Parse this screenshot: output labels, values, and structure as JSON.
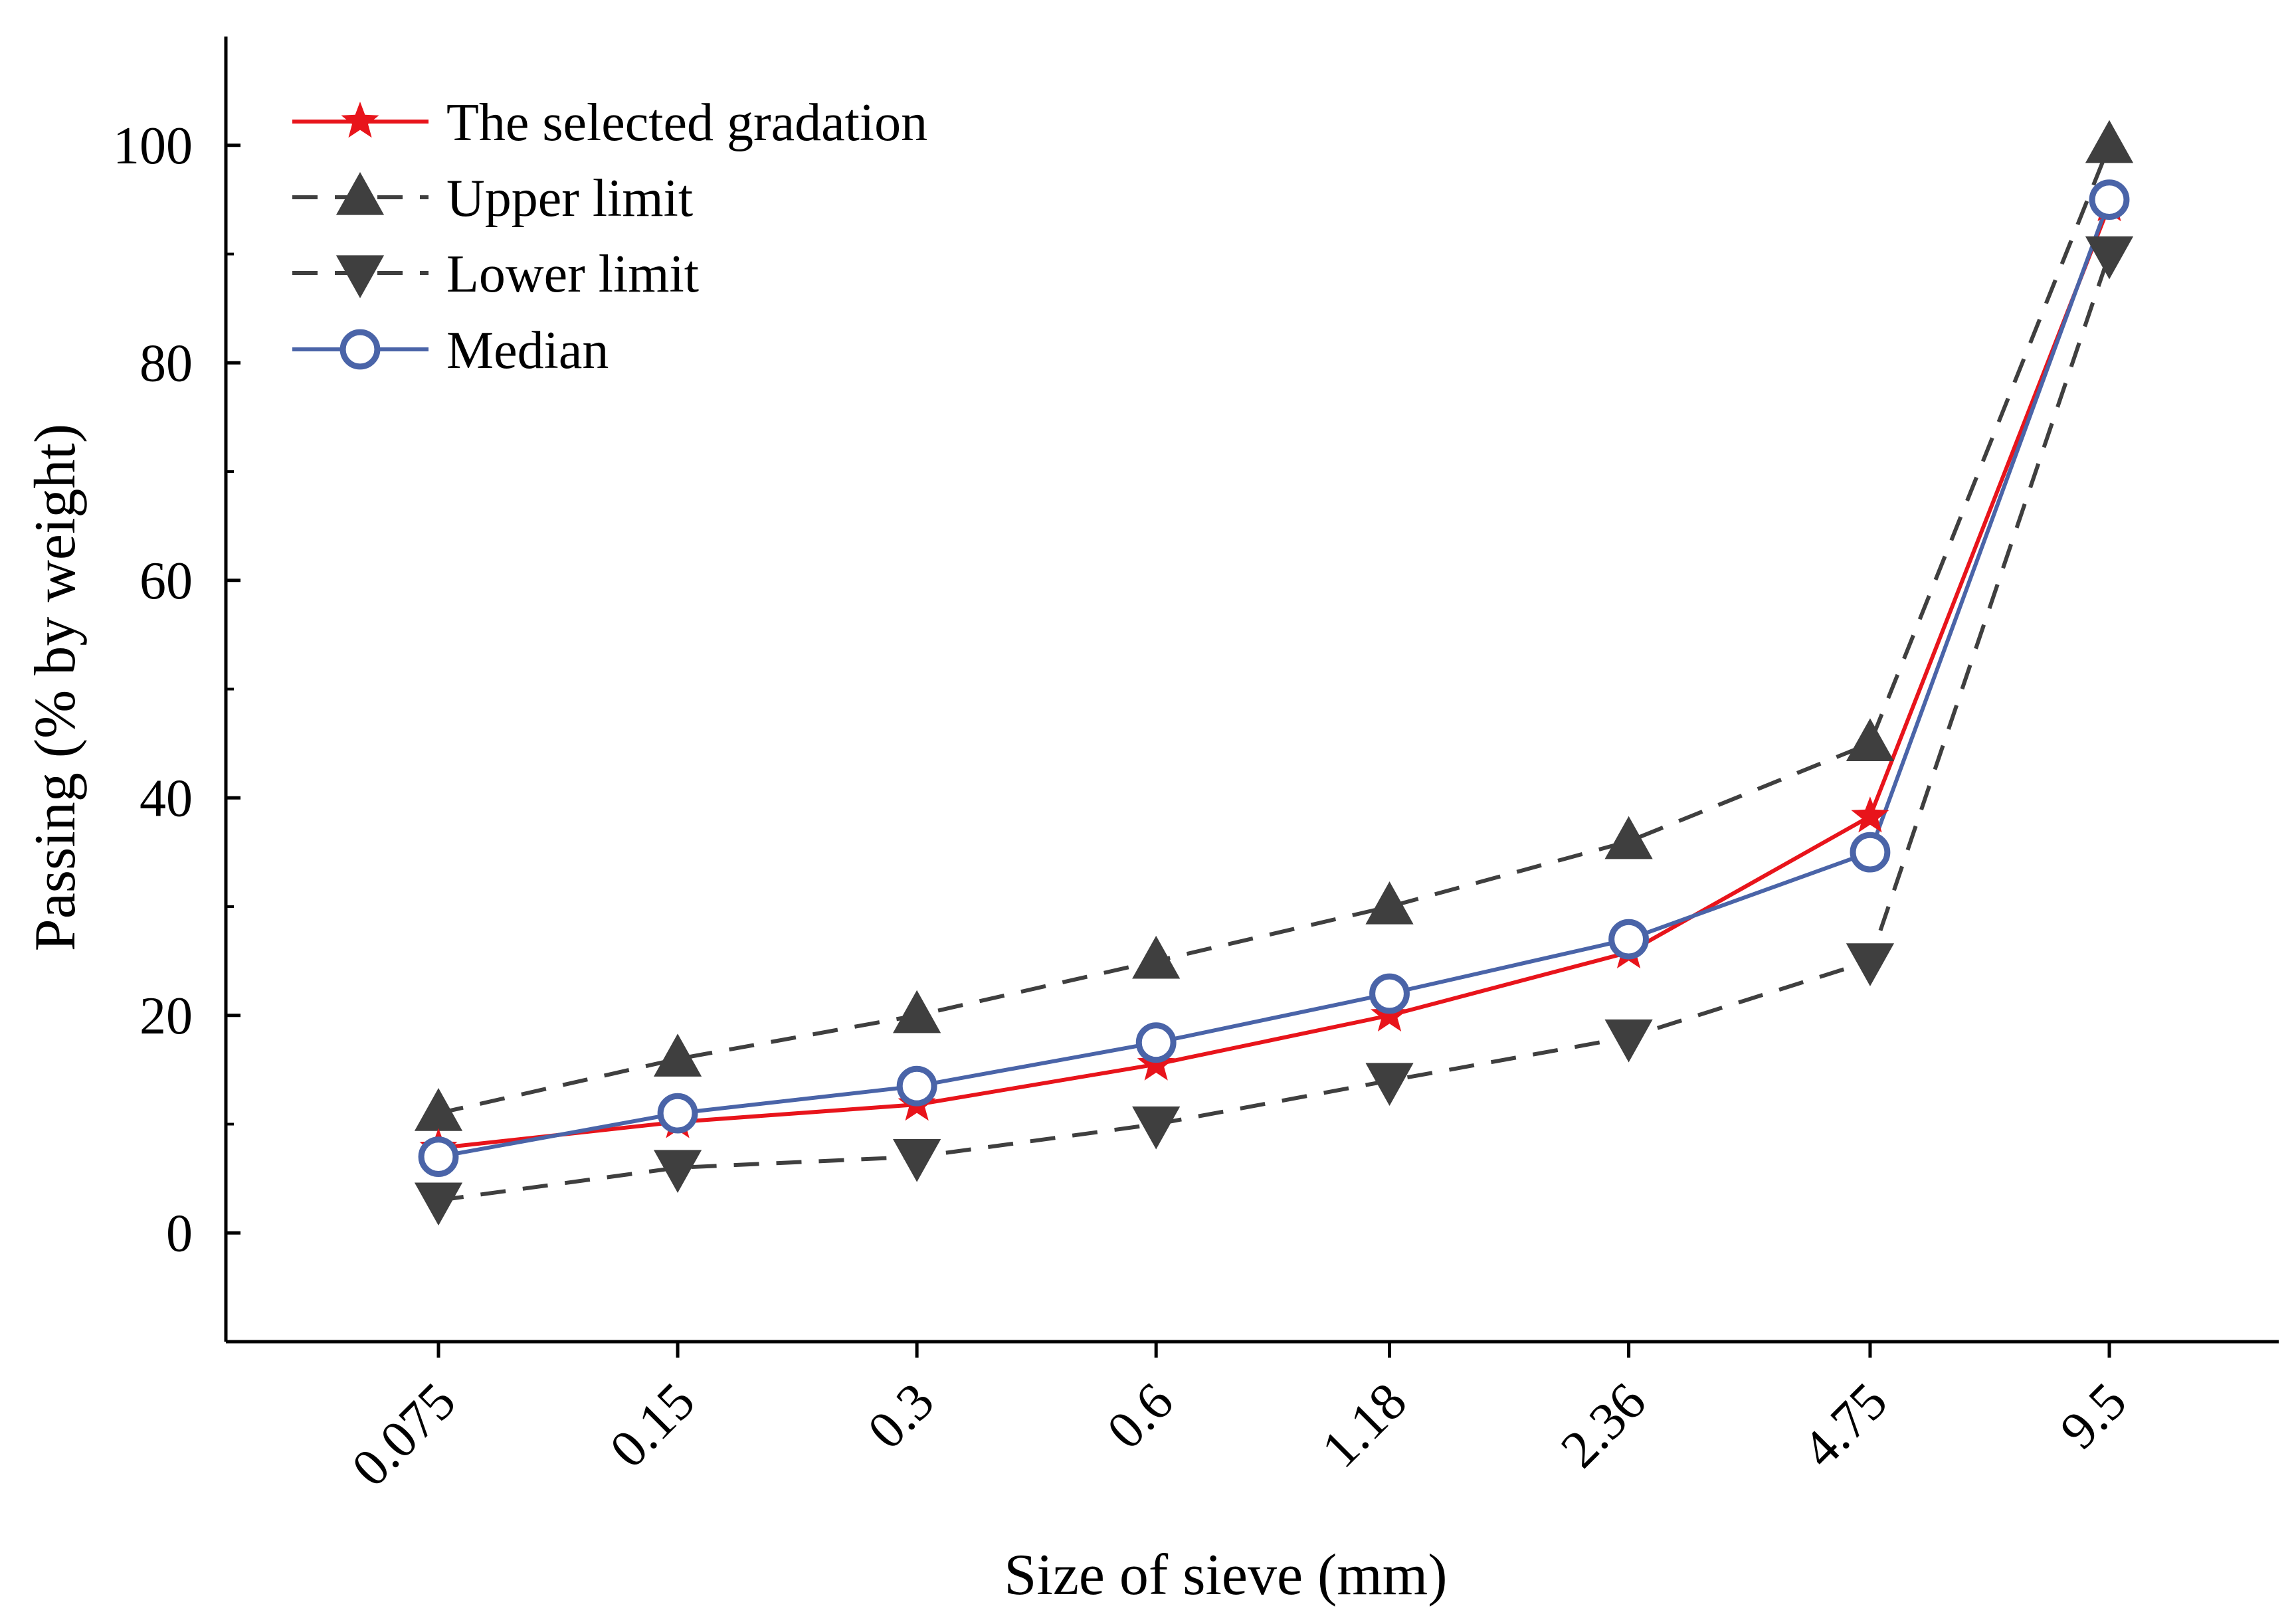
{
  "chart_data": {
    "type": "line",
    "title": "",
    "xlabel": "Size of sieve (mm)",
    "ylabel": "Passing (% by weight)",
    "x_scale": "log",
    "x": [
      0.075,
      0.15,
      0.3,
      0.6,
      1.18,
      2.36,
      4.75,
      9.5
    ],
    "x_tick_labels": [
      "0.075",
      "0.15",
      "0.3",
      "0.6",
      "1.18",
      "2.36",
      "4.75",
      "9.5"
    ],
    "ylim": [
      -10,
      110
    ],
    "y_ticks": [
      0,
      20,
      40,
      60,
      80,
      100
    ],
    "y_tick_labels": [
      "0",
      "20",
      "40",
      "60",
      "80",
      "100"
    ],
    "grid": false,
    "legend_position": "top-left",
    "series": [
      {
        "name": "The selected gradation",
        "values": [
          7.8,
          10.2,
          11.8,
          15.5,
          20.0,
          25.8,
          38.3,
          94.5
        ],
        "color": "#e8141b",
        "line_style": "solid",
        "marker": "star"
      },
      {
        "name": "Upper limit",
        "values": [
          11,
          16,
          20,
          25,
          30,
          36,
          45,
          100
        ],
        "color": "#3f3f3f",
        "line_style": "dashed",
        "marker": "triangle-up"
      },
      {
        "name": "Lower limit",
        "values": [
          3,
          6,
          7,
          10,
          14,
          18,
          25,
          90
        ],
        "color": "#3f3f3f",
        "line_style": "dashed",
        "marker": "triangle-down"
      },
      {
        "name": "Median",
        "values": [
          7,
          11,
          13.5,
          17.5,
          22,
          27,
          35,
          95
        ],
        "color": "#4a64a8",
        "line_style": "solid",
        "marker": "circle-open"
      }
    ]
  }
}
